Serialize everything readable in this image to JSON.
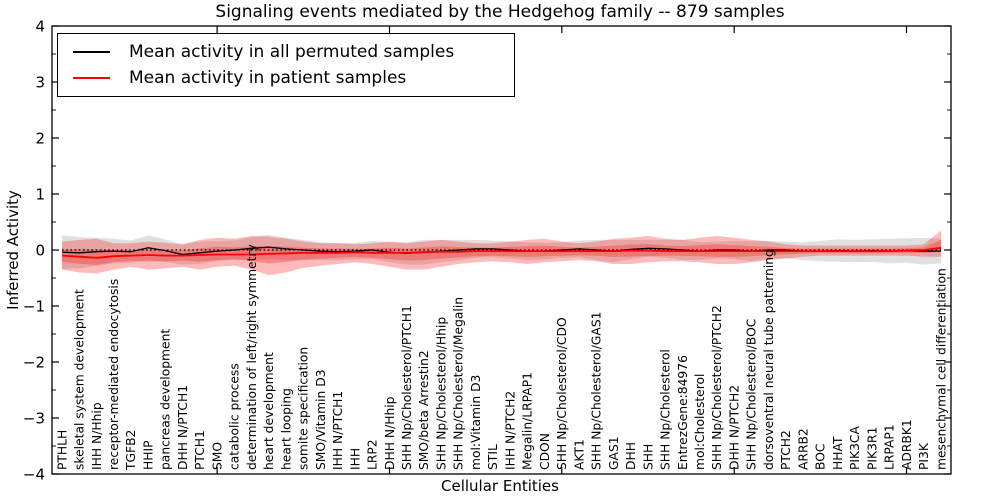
{
  "figure": {
    "title": "Signaling events mediated by the Hedgehog family -- 879 samples",
    "xlabel": "Cellular Entities",
    "ylabel": "Inferred Activity",
    "background_color": "#ffffff"
  },
  "legend": {
    "position": "upper left",
    "entries": [
      {
        "label": "Mean activity in all permuted samples",
        "color": "#000000"
      },
      {
        "label": "Mean activity in patient samples",
        "color": "#ff0000"
      }
    ]
  },
  "chart_data": {
    "type": "line",
    "title": "Signaling events mediated by the Hedgehog family -- 879 samples",
    "xlabel": "Cellular Entities",
    "ylabel": "Inferred Activity",
    "ylim": [
      -4,
      4
    ],
    "yticks": [
      4,
      3,
      2,
      1,
      0,
      -1,
      -2,
      -3,
      -4
    ],
    "ytick_labels": [
      "4",
      "3",
      "2",
      "1",
      "0",
      "−1",
      "−2",
      "−3",
      "−4"
    ],
    "minor_ytick_step": 0.5,
    "grid": false,
    "zero_reference_line": {
      "value": 0,
      "style": "dotted",
      "color": "#000000"
    },
    "legend_position": "upper left",
    "xtick_indices": [
      9,
      19,
      29,
      39,
      49
    ],
    "categories": [
      "PTHLH",
      "skeletal system development",
      "IHH N/Hhip",
      "receptor-mediated endocytosis",
      "TGFB2",
      "HHIP",
      "pancreas development",
      "DHH N/PTCH1",
      "PTCH1",
      "SMO",
      "catabolic process",
      "determination of left/right symmetry",
      "heart development",
      "heart looping",
      "somite specification",
      "SMO/Vitamin D3",
      "IHH N/PTCH1",
      "IHH",
      "LRP2",
      "DHH N/Hhip",
      "SHH Np/Cholesterol/PTCH1",
      "SMO/beta Arrestin2",
      "SHH Np/Cholesterol/Hhip",
      "SHH Np/Cholesterol/Megalin",
      "mol:Vitamin D3",
      "STIL",
      "IHH N/PTCH2",
      "Megalin/LRPAP1",
      "CDON",
      "SHH Np/Cholesterol/CDO",
      "AKT1",
      "SHH Np/Cholesterol/GAS1",
      "GAS1",
      "DHH",
      "SHH",
      "SHH Np/Cholesterol",
      "EntrezGene:84976",
      "mol:Cholesterol",
      "SHH Np/Cholesterol/PTCH2",
      "DHH N/PTCH2",
      "SHH Np/Cholesterol/BOC",
      "dorsoventral neural tube patterning",
      "PTCH2",
      "ARRB2",
      "BOC",
      "HHAT",
      "PIK3CA",
      "PIK3R1",
      "LRPAP1",
      "ADRBK1",
      "PI3K",
      "mesenchymal cell differentiation"
    ],
    "series": [
      {
        "name": "Mean activity in all permuted samples",
        "color": "#000000",
        "band_color": "#000000",
        "band_opacity": 0.12,
        "values": [
          -0.04,
          -0.05,
          -0.03,
          -0.02,
          -0.03,
          0.04,
          -0.01,
          -0.08,
          -0.05,
          -0.02,
          0.0,
          0.03,
          0.05,
          0.02,
          0.0,
          -0.02,
          -0.03,
          -0.02,
          0.0,
          -0.04,
          -0.06,
          -0.04,
          -0.02,
          0.0,
          0.02,
          0.02,
          0.0,
          -0.02,
          -0.02,
          0.0,
          0.02,
          0.0,
          -0.02,
          0.01,
          0.03,
          0.02,
          0.0,
          -0.02,
          0.0,
          0.0,
          -0.02,
          0.0,
          0.0,
          -0.02,
          -0.02,
          -0.01,
          -0.02,
          -0.01,
          -0.02,
          -0.01,
          -0.02,
          -0.02
        ],
        "band_half": [
          0.3,
          0.28,
          0.25,
          0.22,
          0.2,
          0.22,
          0.2,
          0.18,
          0.2,
          0.18,
          0.17,
          0.2,
          0.22,
          0.2,
          0.18,
          0.16,
          0.15,
          0.15,
          0.16,
          0.18,
          0.2,
          0.22,
          0.2,
          0.18,
          0.16,
          0.15,
          0.15,
          0.16,
          0.15,
          0.14,
          0.15,
          0.18,
          0.2,
          0.17,
          0.15,
          0.16,
          0.18,
          0.16,
          0.15,
          0.16,
          0.18,
          0.16,
          0.15,
          0.16,
          0.18,
          0.2,
          0.2,
          0.2,
          0.22,
          0.22,
          0.24,
          0.22
        ]
      },
      {
        "name": "Mean activity in patient samples",
        "color": "#ff0000",
        "band_color": "#ff0000",
        "band_opacity": 0.27,
        "inner_band_scale": 0.45,
        "values": [
          -0.1,
          -0.12,
          -0.14,
          -0.11,
          -0.1,
          -0.09,
          -0.1,
          -0.1,
          -0.09,
          -0.08,
          -0.08,
          -0.08,
          -0.07,
          -0.06,
          -0.05,
          -0.05,
          -0.05,
          -0.04,
          -0.05,
          -0.05,
          -0.05,
          -0.04,
          -0.03,
          -0.03,
          -0.02,
          -0.02,
          -0.02,
          -0.02,
          -0.02,
          -0.02,
          -0.02,
          -0.02,
          -0.02,
          -0.01,
          -0.01,
          -0.02,
          -0.02,
          -0.02,
          -0.02,
          -0.02,
          -0.02,
          -0.02,
          -0.02,
          -0.02,
          -0.02,
          -0.02,
          -0.02,
          -0.02,
          -0.02,
          -0.01,
          0.0,
          0.04
        ],
        "band_upper": [
          0.15,
          0.18,
          0.2,
          0.12,
          0.12,
          0.15,
          0.13,
          0.1,
          0.18,
          0.22,
          0.2,
          0.25,
          0.24,
          0.2,
          0.15,
          0.12,
          0.12,
          0.1,
          0.12,
          0.15,
          0.12,
          0.15,
          0.18,
          0.15,
          0.12,
          0.12,
          0.15,
          0.18,
          0.2,
          0.15,
          0.12,
          0.15,
          0.2,
          0.22,
          0.25,
          0.2,
          0.18,
          0.22,
          0.25,
          0.22,
          0.18,
          0.15,
          0.1,
          0.08,
          0.08,
          0.08,
          0.08,
          0.08,
          0.08,
          0.08,
          0.1,
          0.35
        ],
        "band_lower": [
          -0.35,
          -0.4,
          -0.42,
          -0.35,
          -0.3,
          -0.35,
          -0.33,
          -0.3,
          -0.35,
          -0.3,
          -0.28,
          -0.35,
          -0.45,
          -0.4,
          -0.32,
          -0.28,
          -0.25,
          -0.22,
          -0.25,
          -0.3,
          -0.35,
          -0.35,
          -0.3,
          -0.25,
          -0.22,
          -0.2,
          -0.22,
          -0.25,
          -0.22,
          -0.2,
          -0.18,
          -0.2,
          -0.25,
          -0.25,
          -0.22,
          -0.2,
          -0.2,
          -0.22,
          -0.25,
          -0.25,
          -0.22,
          -0.18,
          -0.15,
          -0.12,
          -0.1,
          -0.1,
          -0.1,
          -0.1,
          -0.1,
          -0.1,
          -0.12,
          -0.12
        ]
      }
    ]
  }
}
